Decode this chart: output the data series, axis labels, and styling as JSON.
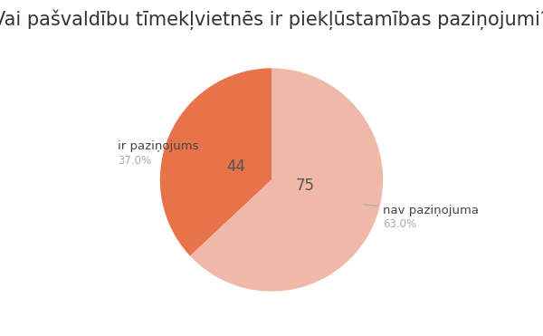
{
  "title": "Vai pašvaldību tīmekļvietnēs ir piekļūstamības paziņojumi?",
  "slices": [
    44,
    75
  ],
  "labels": [
    "ir paziņojums",
    "nav paziņojuma"
  ],
  "percentages": [
    "37.0%",
    "63.0%"
  ],
  "colors": [
    "#e8724a",
    "#f0b8a8"
  ],
  "startangle": 90,
  "background_color": "#ffffff",
  "title_fontsize": 15,
  "label_fontsize": 9.5,
  "pct_fontsize": 8.5,
  "value_fontsize": 12
}
